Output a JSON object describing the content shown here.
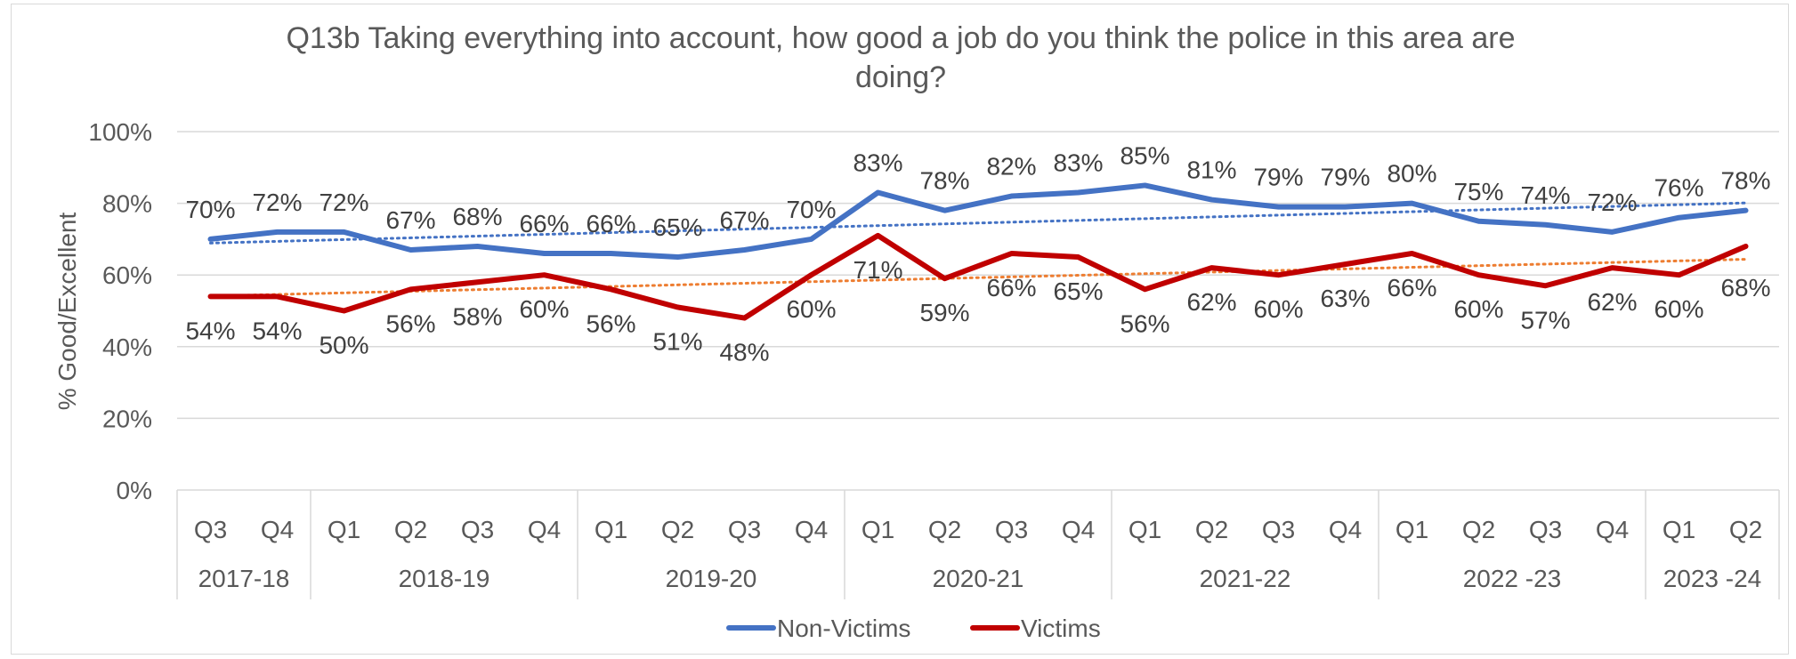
{
  "chart_data": {
    "type": "line",
    "title": "Q13b Taking everything into account, how good a job do you think the police in this area are doing?",
    "title_lines": [
      "Q13b Taking everything into account, how good a job do you think the police in this area are",
      "doing?"
    ],
    "ylabel": "% Good/Excellent",
    "ylim": [
      0,
      100
    ],
    "y_ticks": [
      "0%",
      "20%",
      "40%",
      "60%",
      "80%",
      "100%"
    ],
    "grid": true,
    "legend_position": "bottom",
    "categories": [
      "Q3",
      "Q4",
      "Q1",
      "Q2",
      "Q3",
      "Q4",
      "Q1",
      "Q2",
      "Q3",
      "Q4",
      "Q1",
      "Q2",
      "Q3",
      "Q4",
      "Q1",
      "Q2",
      "Q3",
      "Q4",
      "Q1",
      "Q2",
      "Q3",
      "Q4",
      "Q1",
      "Q2"
    ],
    "groups": [
      {
        "label": "2017-18",
        "span": 2
      },
      {
        "label": "2018-19",
        "span": 4
      },
      {
        "label": "2019-20",
        "span": 4
      },
      {
        "label": "2020-21",
        "span": 4
      },
      {
        "label": "2021-22",
        "span": 4
      },
      {
        "label": "2022 -23",
        "span": 4
      },
      {
        "label": "2023 -24",
        "span": 2
      }
    ],
    "series": [
      {
        "name": "Non-Victims",
        "color": "#4472c4",
        "values": [
          70,
          72,
          72,
          67,
          68,
          66,
          66,
          65,
          67,
          70,
          83,
          78,
          82,
          83,
          85,
          81,
          79,
          79,
          80,
          75,
          74,
          72,
          76,
          78
        ],
        "labels": [
          "70%",
          "72%",
          "72%",
          "67%",
          "68%",
          "66%",
          "66%",
          "65%",
          "67%",
          "70%",
          "83%",
          "78%",
          "82%",
          "83%",
          "85%",
          "81%",
          "79%",
          "79%",
          "80%",
          "75%",
          "74%",
          "72%",
          "76%",
          "78%"
        ],
        "trendline": true,
        "trend_color": "#4472c4"
      },
      {
        "name": "Victims",
        "color": "#c00000",
        "values": [
          54,
          54,
          50,
          56,
          58,
          60,
          56,
          51,
          48,
          60,
          71,
          59,
          66,
          65,
          56,
          62,
          60,
          63,
          66,
          60,
          57,
          62,
          60,
          68
        ],
        "labels": [
          "54%",
          "54%",
          "50%",
          "56%",
          "58%",
          "60%",
          "56%",
          "51%",
          "48%",
          "60%",
          "71%",
          "59%",
          "66%",
          "65%",
          "56%",
          "62%",
          "60%",
          "63%",
          "66%",
          "60%",
          "57%",
          "62%",
          "60%",
          "68%"
        ],
        "trendline": true,
        "trend_color": "#ed7d31"
      }
    ]
  }
}
